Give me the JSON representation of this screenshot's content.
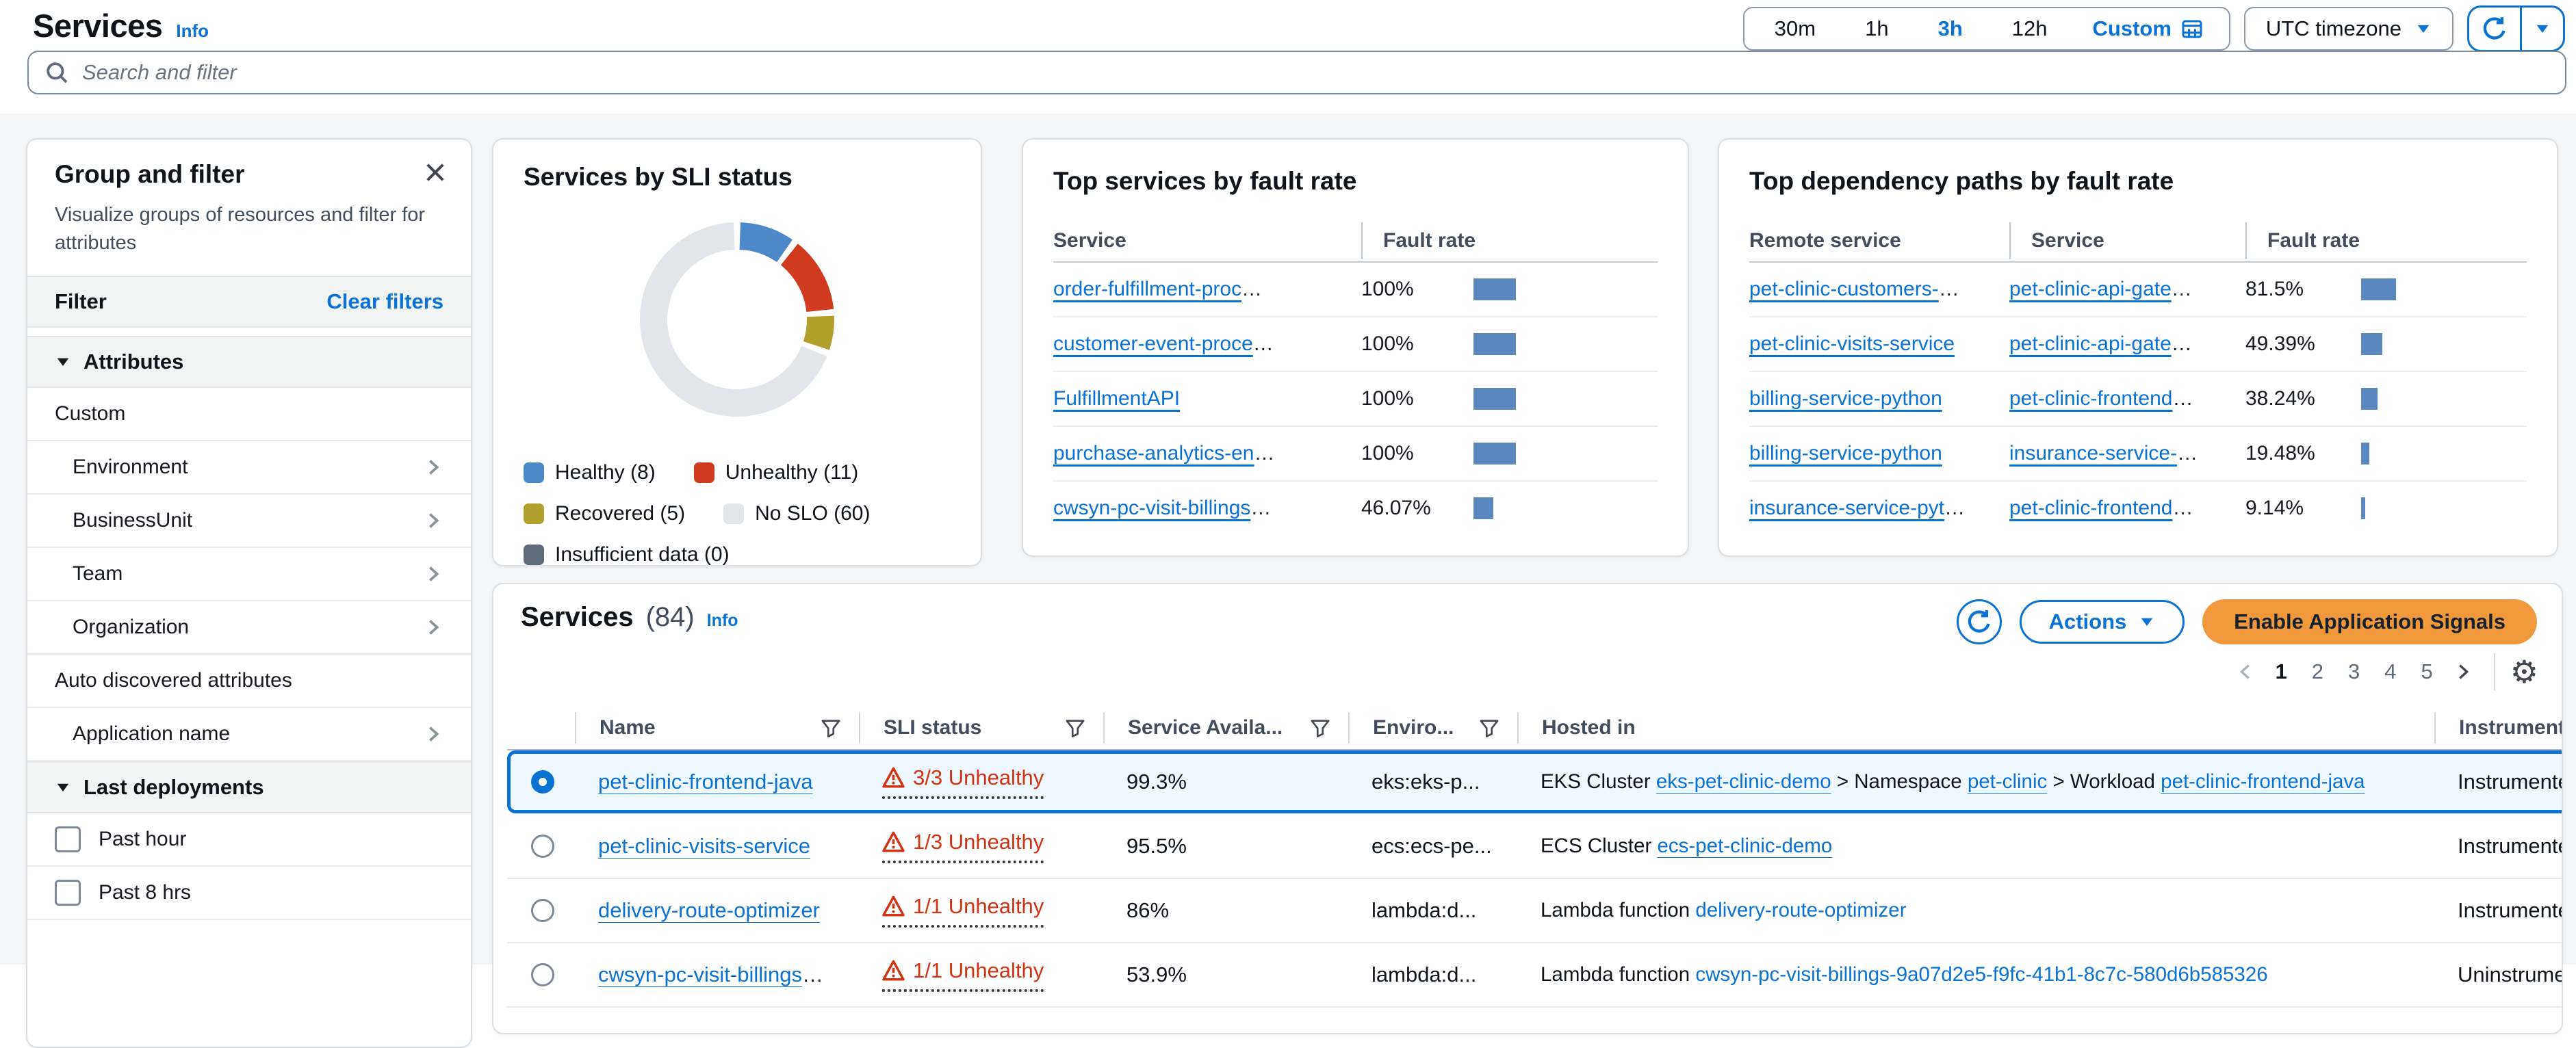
{
  "header": {
    "title": "Services",
    "info": "Info",
    "search_placeholder": "Search and filter"
  },
  "time_controls": {
    "ranges": [
      "30m",
      "1h",
      "3h",
      "12h"
    ],
    "selected": "3h",
    "custom": "Custom",
    "timezone": "UTC timezone"
  },
  "sidebar": {
    "title": "Group and filter",
    "description": "Visualize groups of resources and filter for attributes",
    "filter": {
      "label": "Filter",
      "clear": "Clear filters"
    },
    "attributes_header": "Attributes",
    "custom_group_label": "Custom",
    "attribute_items": [
      "Environment",
      "BusinessUnit",
      "Team",
      "Organization"
    ],
    "auto_discovered_label": "Auto discovered attributes",
    "auto_discovered_items": [
      "Application name"
    ],
    "last_deployments_header": "Last deployments",
    "deployment_filters": [
      "Past hour",
      "Past 8 hrs"
    ]
  },
  "chart_data": [
    {
      "type": "pie",
      "donut": true,
      "title": "Services by SLI status",
      "labels": [
        "Healthy",
        "Unhealthy",
        "Recovered",
        "No SLO",
        "Insufficient data"
      ],
      "values": [
        8,
        11,
        5,
        60,
        0
      ],
      "colors": [
        "#4d88c8",
        "#d03a1f",
        "#b2a02c",
        "#e2e5e9",
        "#5f6b7a"
      ],
      "legend_position": "bottom"
    },
    {
      "type": "bar",
      "title": "Top services by fault rate",
      "columns": [
        "Service",
        "Fault rate"
      ],
      "bar_color": "#5b87c0",
      "xlim": [
        0,
        100
      ],
      "rows": [
        {
          "service": "order-fulfillment-proc",
          "truncated": true,
          "rate_label": "100%",
          "rate": 100
        },
        {
          "service": "customer-event-proce",
          "truncated": true,
          "rate_label": "100%",
          "rate": 100
        },
        {
          "service": "FulfillmentAPI",
          "truncated": false,
          "rate_label": "100%",
          "rate": 100
        },
        {
          "service": "purchase-analytics-en",
          "truncated": true,
          "rate_label": "100%",
          "rate": 100
        },
        {
          "service": "cwsyn-pc-visit-billings",
          "truncated": true,
          "rate_label": "46.07%",
          "rate": 46.07
        }
      ]
    },
    {
      "type": "bar",
      "title": "Top dependency paths by fault rate",
      "columns": [
        "Remote service",
        "Service",
        "Fault rate"
      ],
      "bar_color": "#5b87c0",
      "xlim": [
        0,
        100
      ],
      "rows": [
        {
          "remote": "pet-clinic-customers-",
          "remote_truncated": true,
          "service": "pet-clinic-api-gate",
          "service_truncated": true,
          "rate_label": "81.5%",
          "rate": 81.5
        },
        {
          "remote": "pet-clinic-visits-service",
          "remote_truncated": false,
          "service": "pet-clinic-api-gate",
          "service_truncated": true,
          "rate_label": "49.39%",
          "rate": 49.39
        },
        {
          "remote": "billing-service-python",
          "remote_truncated": false,
          "service": "pet-clinic-frontend",
          "service_truncated": true,
          "rate_label": "38.24%",
          "rate": 38.24
        },
        {
          "remote": "billing-service-python",
          "remote_truncated": false,
          "service": "insurance-service-",
          "service_truncated": true,
          "rate_label": "19.48%",
          "rate": 19.48
        },
        {
          "remote": "insurance-service-pyt",
          "remote_truncated": true,
          "service": "pet-clinic-frontend",
          "service_truncated": true,
          "rate_label": "9.14%",
          "rate": 9.14
        }
      ]
    }
  ],
  "services_card": {
    "title": "Services",
    "count": "(84)",
    "info": "Info",
    "actions_label": "Actions",
    "enable_label": "Enable Application Signals",
    "pagination": {
      "pages": [
        "1",
        "2",
        "3",
        "4",
        "5"
      ],
      "current": "1"
    },
    "columns": [
      "Name",
      "SLI status",
      "Service Availa...",
      "Enviro...",
      "Hosted in",
      "Instrumentation"
    ],
    "rows": [
      {
        "selected": true,
        "name": "pet-clinic-frontend-java",
        "name_truncated": false,
        "sli": "3/3 Unhealthy",
        "availability": "99.3%",
        "environment": "eks:eks-p...",
        "hosted_in": [
          {
            "text": "EKS Cluster "
          },
          {
            "link": "eks-pet-clinic-demo",
            "underline": true
          },
          {
            "text": " > Namespace "
          },
          {
            "link": "pet-clinic",
            "underline": true
          },
          {
            "text": " > Workload "
          },
          {
            "link": "pet-clinic-frontend-java",
            "underline": true
          }
        ],
        "instrumentation": "Instrumented"
      },
      {
        "selected": false,
        "name": "pet-clinic-visits-service",
        "name_truncated": false,
        "sli": "1/3 Unhealthy",
        "availability": "95.5%",
        "environment": "ecs:ecs-pe...",
        "hosted_in": [
          {
            "text": "ECS Cluster "
          },
          {
            "link": "ecs-pet-clinic-demo",
            "underline": true
          }
        ],
        "instrumentation": "Instrumented"
      },
      {
        "selected": false,
        "name": "delivery-route-optimizer",
        "name_truncated": false,
        "sli": "1/1 Unhealthy",
        "availability": "86%",
        "environment": "lambda:d...",
        "hosted_in": [
          {
            "text": "Lambda function "
          },
          {
            "link": "delivery-route-optimizer",
            "underline": false
          }
        ],
        "instrumentation": "Instrumented"
      },
      {
        "selected": false,
        "name": "cwsyn-pc-visit-billings",
        "name_truncated": true,
        "sli": "1/1 Unhealthy",
        "availability": "53.9%",
        "environment": "lambda:d...",
        "hosted_in": [
          {
            "text": "Lambda function "
          },
          {
            "link": "cwsyn-pc-visit-billings-9a07d2e5-f9fc-41b1-8c7c-580d6b585326",
            "underline": false
          }
        ],
        "instrumentation": "Uninstrumented"
      }
    ]
  },
  "colors": {
    "accent": "#0972d3",
    "red": "#d13212",
    "orange": "#f0993c",
    "text": "#0f141a",
    "text-secondary": "#414d5c",
    "muted": "#5f6b7a",
    "card-border": "#dadfe4",
    "divider": "#e9ebed",
    "band": "#f2f3f3",
    "page-bg": "#f4f5f6",
    "sel-bg": "#f0f8ff",
    "bar": "#5b87c0",
    "ctrl-border": "#8c99a8"
  }
}
